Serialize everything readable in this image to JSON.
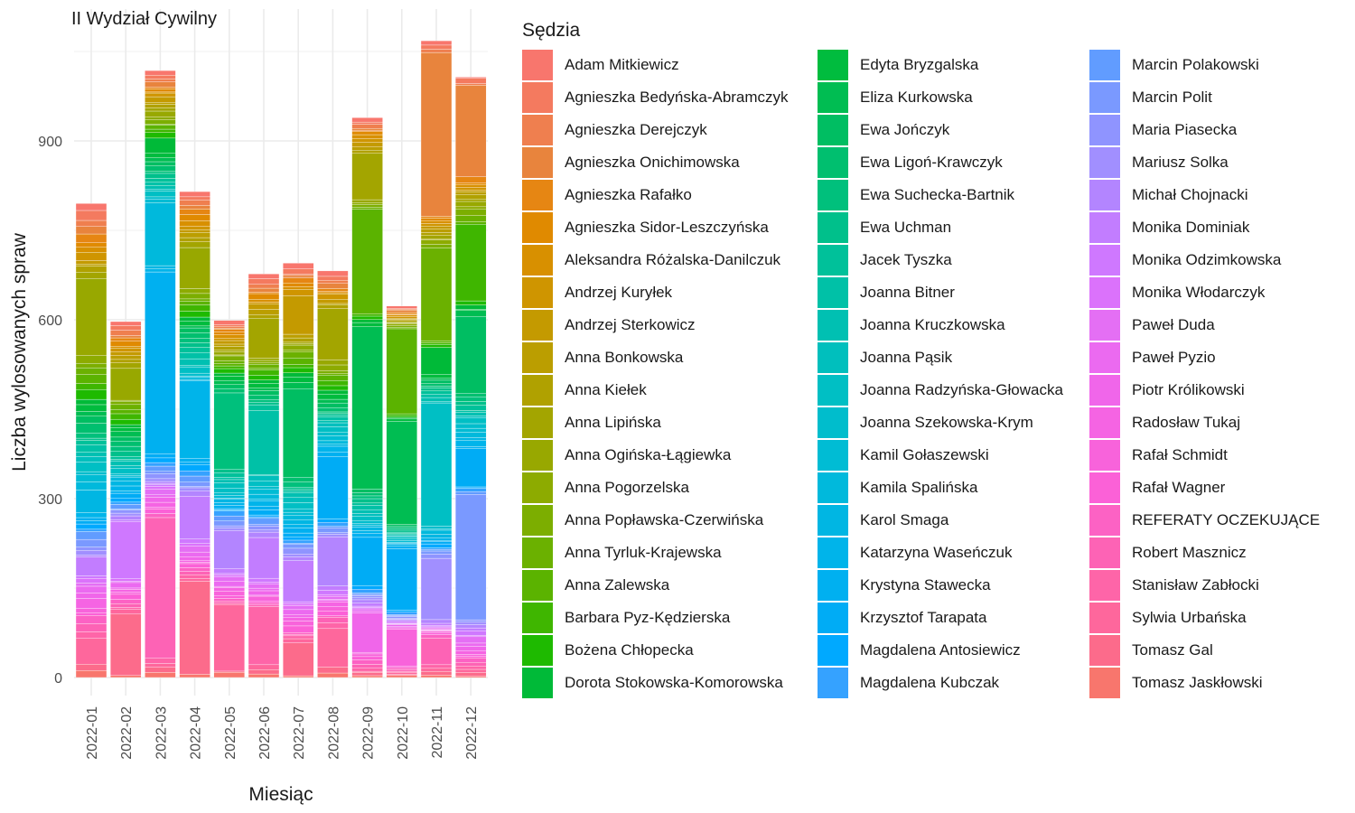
{
  "chart_data": {
    "type": "bar",
    "stacked": true,
    "title": "II Wydział Cywilny",
    "xlabel": "Miesiąc",
    "ylabel": "Liczba wylosowanych spraw",
    "ylim": [
      0,
      1080
    ],
    "yticks": [
      0,
      300,
      600,
      900
    ],
    "grid": true,
    "legend_position": "right",
    "legend_title": "Sędzia",
    "categories": [
      "2022-01",
      "2022-02",
      "2022-03",
      "2022-04",
      "2022-05",
      "2022-06",
      "2022-07",
      "2022-08",
      "2022-09",
      "2022-10",
      "2022-11",
      "2022-12"
    ],
    "totals": [
      795,
      597,
      1018,
      815,
      599,
      677,
      695,
      682,
      939,
      623,
      1068,
      1007
    ],
    "series_names": [
      "Adam Mitkiewicz",
      "Agnieszka Bedyńska-Abramczyk",
      "Agnieszka Derejczyk",
      "Agnieszka Onichimowska",
      "Agnieszka Rafałko",
      "Agnieszka Sidor-Leszczyńska",
      "Aleksandra Różalska-Danilczuk",
      "Andrzej Kuryłek",
      "Andrzej Sterkowicz",
      "Anna Bonkowska",
      "Anna Kiełek",
      "Anna Lipińska",
      "Anna Ogińska-Łągiewka",
      "Anna Pogorzelska",
      "Anna Popławska-Czerwińska",
      "Anna Tyrluk-Krajewska",
      "Anna Zalewska",
      "Barbara Pyz-Kędzierska",
      "Bożena Chłopecka",
      "Dorota Stokowska-Komorowska",
      "Edyta Bryzgalska",
      "Eliza Kurkowska",
      "Ewa Jończyk",
      "Ewa Ligoń-Krawczyk",
      "Ewa Suchecka-Bartnik",
      "Ewa Uchman",
      "Jacek Tyszka",
      "Joanna Bitner",
      "Joanna Kruczkowska",
      "Joanna Pąsik",
      "Joanna Radzyńska-Głowacka",
      "Joanna Szekowska-Krym",
      "Kamil Gołaszewski",
      "Kamila Spalińska",
      "Karol Smaga",
      "Katarzyna Waseńczuk",
      "Krystyna Stawecka",
      "Krzysztof Tarapata",
      "Magdalena Antosiewicz",
      "Magdalena Kubczak",
      "Marcin Polakowski",
      "Marcin Polit",
      "Maria Piasecka",
      "Mariusz Solka",
      "Michał Chojnacki",
      "Monika Dominiak",
      "Monika Odzimkowska",
      "Monika Włodarczyk",
      "Paweł Duda",
      "Paweł Pyzio",
      "Piotr Królikowski",
      "Radosław Tukaj",
      "Rafał Schmidt",
      "Rafał Wagner",
      "REFERATY OCZEKUJĄCE",
      "Robert Masznicz",
      "Stanisław Zabłocki",
      "Sylwia Urbańska",
      "Tomasz Gal",
      "Tomasz Jaskłowski"
    ],
    "colors": [
      "#F8766D",
      "#F47A5F",
      "#EF7F4F",
      "#E8843D",
      "#E68613",
      "#E08A00",
      "#D89000",
      "#CF9500",
      "#C49A00",
      "#BB9E00",
      "#B0A100",
      "#A3A500",
      "#98A800",
      "#8DAB00",
      "#7CAE00",
      "#6BB100",
      "#5BB300",
      "#3FB600",
      "#1EBA00",
      "#00BA38",
      "#00BC3E",
      "#00BD52",
      "#00BE62",
      "#00BF6F",
      "#00C07C",
      "#00C08B",
      "#00C19A",
      "#00C1A7",
      "#00C0B2",
      "#00BFBD",
      "#00BFC4",
      "#00BDCC",
      "#00BCD4",
      "#00B9DC",
      "#00B6E3",
      "#00B4EA",
      "#00B0F0",
      "#00ACF5",
      "#00A9FF",
      "#35A2FF",
      "#619CFF",
      "#7A99FF",
      "#8F94FF",
      "#A18FFF",
      "#B385FF",
      "#C27DFF",
      "#CF78FF",
      "#DB72FB",
      "#E46FF4",
      "#EB6AF0",
      "#F066EA",
      "#F564E3",
      "#F863DB",
      "#FB61D7",
      "#FC62C4",
      "#FD63B5",
      "#FE65A8",
      "#FE679C",
      "#FC6B8B",
      "#F8766D"
    ]
  }
}
